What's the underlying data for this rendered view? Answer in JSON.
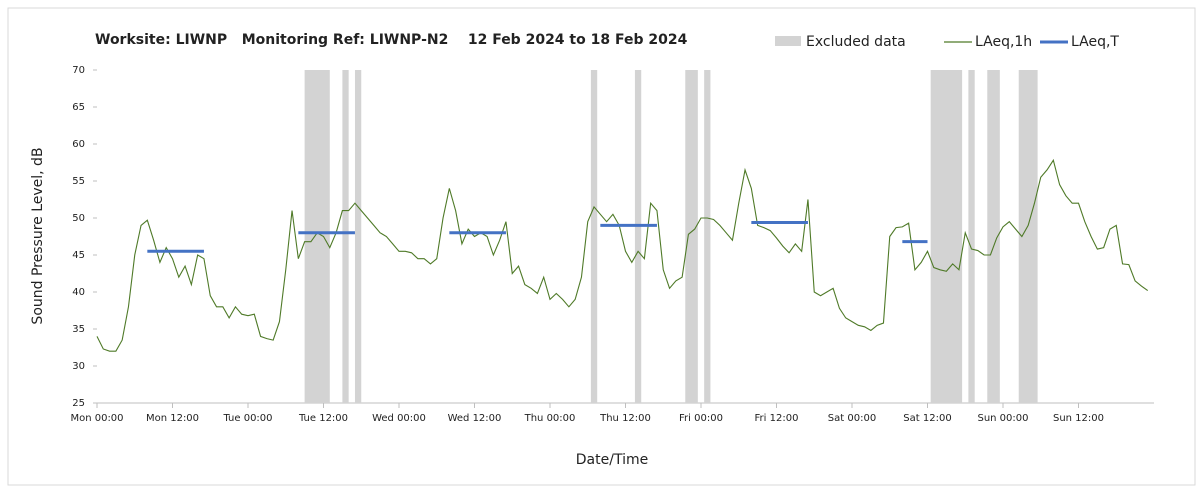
{
  "chart_data": {
    "type": "line",
    "title": "Worksite: LIWNP   Monitoring Ref: LIWNP-N2    12 Feb 2024 to 18 Feb 2024",
    "x_label": "Date/Time",
    "y_label": "Sound Pressure Level, dB",
    "xlim": [
      0,
      168
    ],
    "ylim": [
      25,
      70
    ],
    "yticks": [
      25,
      30,
      35,
      40,
      45,
      50,
      55,
      60,
      65,
      70
    ],
    "xticks": [
      {
        "value": 0,
        "label": "Mon 00:00"
      },
      {
        "value": 12,
        "label": "Mon 12:00"
      },
      {
        "value": 24,
        "label": "Tue 00:00"
      },
      {
        "value": 36,
        "label": "Tue 12:00"
      },
      {
        "value": 48,
        "label": "Wed 00:00"
      },
      {
        "value": 60,
        "label": "Wed 12:00"
      },
      {
        "value": 72,
        "label": "Thu 00:00"
      },
      {
        "value": 84,
        "label": "Thu 12:00"
      },
      {
        "value": 96,
        "label": "Fri 00:00"
      },
      {
        "value": 108,
        "label": "Fri 12:00"
      },
      {
        "value": 120,
        "label": "Sat 00:00"
      },
      {
        "value": 132,
        "label": "Sat 12:00"
      },
      {
        "value": 144,
        "label": "Sun 00:00"
      },
      {
        "value": 156,
        "label": "Sun 12:00"
      }
    ],
    "grid": false,
    "x": [
      0,
      1,
      2,
      3,
      4,
      5,
      6,
      7,
      8,
      9,
      10,
      11,
      12,
      13,
      14,
      15,
      16,
      17,
      18,
      19,
      20,
      21,
      22,
      23,
      24,
      25,
      26,
      27,
      28,
      29,
      30,
      31,
      32,
      33,
      34,
      35,
      36,
      37,
      38,
      39,
      40,
      41,
      42,
      43,
      44,
      45,
      46,
      47,
      48,
      49,
      50,
      51,
      52,
      53,
      54,
      55,
      56,
      57,
      58,
      59,
      60,
      61,
      62,
      63,
      64,
      65,
      66,
      67,
      68,
      69,
      70,
      71,
      72,
      73,
      74,
      75,
      76,
      77,
      78,
      79,
      80,
      81,
      82,
      83,
      84,
      85,
      86,
      87,
      88,
      89,
      90,
      91,
      92,
      93,
      94,
      95,
      96,
      97,
      98,
      99,
      100,
      101,
      102,
      103,
      104,
      105,
      106,
      107,
      108,
      109,
      110,
      111,
      112,
      113,
      114,
      115,
      116,
      117,
      118,
      119,
      120,
      121,
      122,
      123,
      124,
      125,
      126,
      127,
      128,
      129,
      130,
      131,
      132,
      133,
      134,
      135,
      136,
      137,
      138,
      139,
      140,
      141,
      142,
      143,
      144,
      145,
      146,
      147,
      148,
      149,
      150,
      151,
      152,
      153,
      154,
      155,
      156,
      157,
      158,
      159,
      160,
      161,
      162,
      163,
      164,
      165,
      166,
      167
    ],
    "series": [
      {
        "name": "LAeq,1h",
        "color": "#4f7a28",
        "values": [
          34,
          32.3,
          32,
          32,
          33.5,
          38,
          45,
          49,
          49.7,
          47,
          44,
          46,
          44.5,
          42,
          43.5,
          41,
          45,
          44.5,
          39.5,
          38,
          38,
          36.5,
          38,
          37,
          36.8,
          37,
          34,
          33.7,
          33.5,
          36,
          43,
          51,
          44.5,
          46.8,
          46.8,
          48,
          47.5,
          46,
          48,
          51,
          51,
          52,
          51,
          50,
          49,
          48,
          47.5,
          46.5,
          45.5,
          45.5,
          45.3,
          44.5,
          44.5,
          43.8,
          44.5,
          50,
          54,
          51,
          46.5,
          48.5,
          47.5,
          48,
          47.5,
          45,
          47,
          49.5,
          42.5,
          43.5,
          41,
          40.5,
          39.8,
          42,
          39,
          39.8,
          39,
          38,
          39,
          42,
          49.5,
          51.5,
          50.5,
          49.5,
          50.5,
          49,
          45.5,
          44,
          45.5,
          44.5,
          52,
          51,
          43,
          40.5,
          41.5,
          42,
          47.8,
          48.5,
          50,
          50,
          49.8,
          49,
          48,
          47,
          52,
          56.5,
          54,
          49,
          48.7,
          48.3,
          47.3,
          46.2,
          45.3,
          46.5,
          45.5,
          52.5,
          40,
          39.5,
          40,
          40.5,
          37.8,
          36.5,
          36,
          35.5,
          35.3,
          34.8,
          35.5,
          35.8,
          47.5,
          48.7,
          48.8,
          49.3,
          43,
          44,
          45.5,
          43.3,
          43,
          42.8,
          43.8,
          43,
          48,
          45.8,
          45.6,
          45,
          45,
          47.3,
          48.8,
          49.5,
          48.5,
          47.5,
          49,
          52,
          55.5,
          56.5,
          57.8,
          54.5,
          53,
          52,
          52,
          49.5,
          47.5,
          45.8,
          46,
          48.5,
          49,
          43.8,
          43.7,
          41.5,
          40.8,
          40.2
        ]
      }
    ],
    "excluded": {
      "name": "Excluded data",
      "color": "#d3d3d3",
      "ranges": [
        [
          33,
          37
        ],
        [
          39,
          40
        ],
        [
          41,
          42
        ],
        [
          78.5,
          79.5
        ],
        [
          85.5,
          86.5
        ],
        [
          93.5,
          95.5
        ],
        [
          96.5,
          97.5
        ],
        [
          132.5,
          137.5
        ],
        [
          138.5,
          139.5
        ],
        [
          141.5,
          143.5
        ],
        [
          146.5,
          149.5
        ]
      ]
    },
    "periods": {
      "name": "LAeq,T",
      "color": "#4472c4",
      "ranges": [
        [
          8,
          17
        ],
        [
          32,
          41
        ],
        [
          56,
          65
        ],
        [
          80,
          89
        ],
        [
          104,
          113
        ],
        [
          128,
          132
        ]
      ],
      "values": [
        45.5,
        48,
        48,
        49,
        49.4,
        46.8
      ]
    }
  }
}
